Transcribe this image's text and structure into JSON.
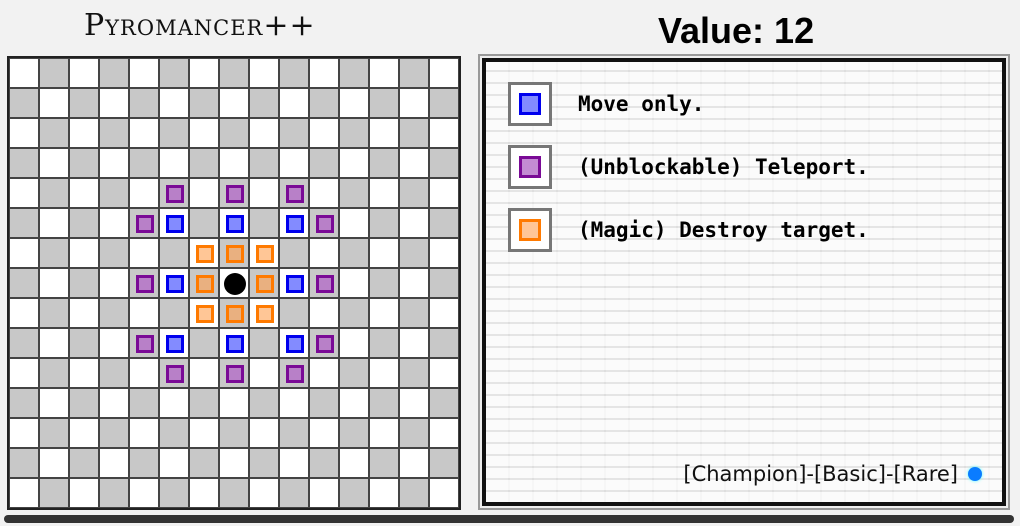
{
  "title": "Pyromancer++",
  "value_label": "Value: 12",
  "board": {
    "size": 15,
    "piece": [
      7,
      7
    ],
    "markers": [
      {
        "type": "teleport",
        "cells": [
          [
            5,
            4
          ],
          [
            7,
            4
          ],
          [
            9,
            4
          ],
          [
            4,
            5
          ],
          [
            10,
            5
          ],
          [
            4,
            7
          ],
          [
            10,
            7
          ],
          [
            4,
            9
          ],
          [
            10,
            9
          ],
          [
            5,
            10
          ],
          [
            7,
            10
          ],
          [
            9,
            10
          ]
        ]
      },
      {
        "type": "move",
        "cells": [
          [
            5,
            5
          ],
          [
            7,
            5
          ],
          [
            9,
            5
          ],
          [
            5,
            7
          ],
          [
            9,
            7
          ],
          [
            5,
            9
          ],
          [
            7,
            9
          ],
          [
            9,
            9
          ]
        ]
      },
      {
        "type": "destroy",
        "cells": [
          [
            6,
            6
          ],
          [
            7,
            6
          ],
          [
            8,
            6
          ],
          [
            6,
            7
          ],
          [
            8,
            7
          ],
          [
            6,
            8
          ],
          [
            7,
            8
          ],
          [
            8,
            8
          ]
        ]
      }
    ]
  },
  "colors": {
    "move": {
      "border": "#0000ee",
      "fill": "rgba(100,110,255,0.8)"
    },
    "teleport": {
      "border": "#7a0a96",
      "fill": "rgba(180,110,200,0.8)"
    },
    "destroy": {
      "border": "#ff7a00",
      "fill": "rgba(255,160,80,0.6)"
    },
    "rarity": "#0a7cff"
  },
  "legend": [
    {
      "type": "move",
      "label": "Move only."
    },
    {
      "type": "teleport",
      "label": "(Unblockable) Teleport."
    },
    {
      "type": "destroy",
      "label": "(Magic) Destroy target."
    }
  ],
  "tags": "[Champion]-[Basic]-[Rare]"
}
